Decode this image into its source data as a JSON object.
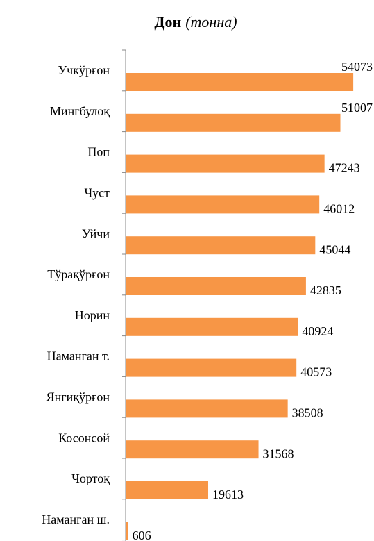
{
  "chart_data": {
    "type": "barh",
    "title": "Дон",
    "title_unit": "(тонна)",
    "categories": [
      "Учкўрғон",
      "Мингбулоқ",
      "Поп",
      "Чуст",
      "Уйчи",
      "Тўрақўрғон",
      "Норин",
      "Наманган т.",
      "Янгиқўрғон",
      "Косонсой",
      "Чортоқ",
      "Наманган ш."
    ],
    "values": [
      54073,
      51007,
      47243,
      46012,
      45044,
      42835,
      40924,
      40573,
      38508,
      31568,
      19613,
      606
    ],
    "color": "#f79646",
    "xlim": [
      0,
      59000
    ]
  }
}
